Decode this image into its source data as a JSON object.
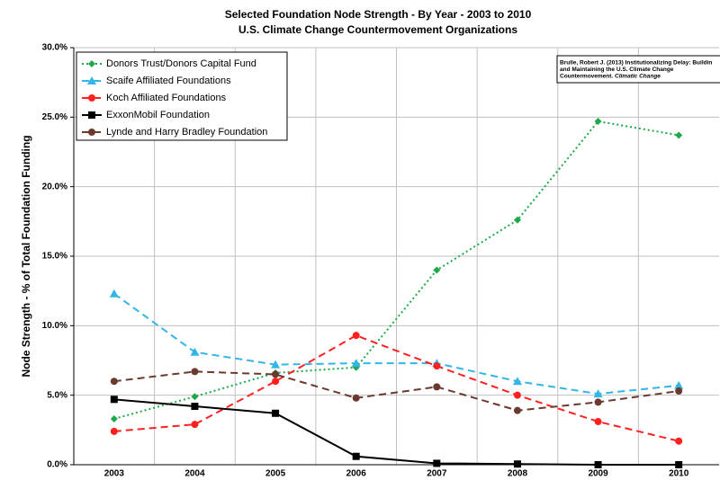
{
  "chart_data": {
    "type": "line",
    "title": "Selected Foundation Node Strength - By Year - 2003 to 2010",
    "subtitle": "U.S. Climate Change Countermovement Organizations",
    "y_label": "Node Strength - % of Total Foundation Funding",
    "annotation": {
      "lines": [
        "Brulle, Robert J. (2013) Institutionalizing Delay: Buildin",
        "and Maintaining the U.S. Climate Change",
        "Countermovement."
      ],
      "italic": "Climatic Change"
    },
    "categories": [
      "2003",
      "2004",
      "2005",
      "2006",
      "2007",
      "2008",
      "2009",
      "2010"
    ],
    "series": [
      {
        "name": "Donors Trust/Donors Capital Fund",
        "color": "#1fa84a",
        "dash": "dotted",
        "marker": "diamond",
        "values": [
          3.3,
          4.9,
          6.6,
          7.0,
          14.0,
          17.6,
          24.7,
          23.7
        ]
      },
      {
        "name": "Scaife Affiliated Foundations",
        "color": "#33b5e5",
        "dash": "dashed",
        "marker": "triangle",
        "values": [
          12.3,
          8.1,
          7.2,
          7.3,
          7.3,
          6.0,
          5.1,
          5.7
        ]
      },
      {
        "name": "Koch Affiliated Foundations",
        "color": "#ff2020",
        "dash": "dashed",
        "marker": "circle",
        "values": [
          2.4,
          2.9,
          6.0,
          9.3,
          7.1,
          5.0,
          3.1,
          1.7
        ]
      },
      {
        "name": "ExxonMobil Foundation",
        "color": "#000000",
        "dash": "solid",
        "marker": "square",
        "values": [
          4.7,
          4.2,
          3.7,
          0.6,
          0.1,
          0.05,
          0.0,
          0.0
        ]
      },
      {
        "name": "Lynde and Harry Bradley Foundation",
        "color": "#6b3a2e",
        "dash": "dashed",
        "marker": "circle",
        "values": [
          6.0,
          6.7,
          6.5,
          4.8,
          5.6,
          3.9,
          4.5,
          5.3
        ]
      }
    ],
    "ylim": [
      0,
      30
    ],
    "yticks": [
      {
        "value": 0,
        "label": "0.0%"
      },
      {
        "value": 5,
        "label": "5.0%"
      },
      {
        "value": 10,
        "label": "10.0%"
      },
      {
        "value": 15,
        "label": "15.0%"
      },
      {
        "value": 20,
        "label": "20.0%"
      },
      {
        "value": 25,
        "label": "25.0%"
      },
      {
        "value": 30,
        "label": "30.0%"
      }
    ],
    "grid": true,
    "legend": "upper left"
  }
}
